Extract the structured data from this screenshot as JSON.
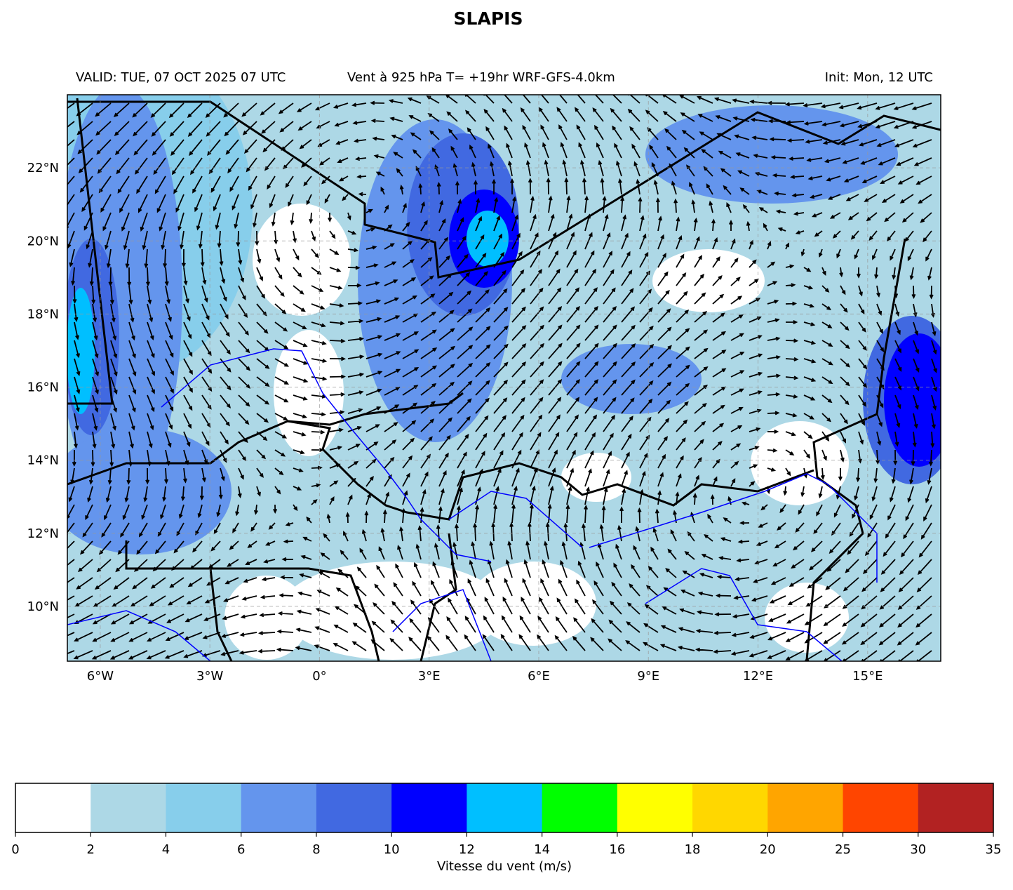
{
  "title": "SLAPIS",
  "header": {
    "valid": "VALID: TUE, 07 OCT 2025 07 UTC",
    "field": "Vent à 925 hPa T= +19hr  WRF-GFS-4.0km",
    "init": "Init: Mon, 12 UTC"
  },
  "map": {
    "lon_range": [
      -6.9,
      17
    ],
    "lat_range": [
      8.5,
      24
    ],
    "gridlines": true,
    "lon_ticks": [
      {
        "value": -6,
        "label": "6°W"
      },
      {
        "value": -3,
        "label": "3°W"
      },
      {
        "value": 0,
        "label": "0°"
      },
      {
        "value": 3,
        "label": "3°E"
      },
      {
        "value": 6,
        "label": "6°E"
      },
      {
        "value": 9,
        "label": "9°E"
      },
      {
        "value": 12,
        "label": "12°E"
      },
      {
        "value": 15,
        "label": "15°E"
      }
    ],
    "lat_ticks": [
      {
        "value": 10,
        "label": "10°N"
      },
      {
        "value": 12,
        "label": "12°N"
      },
      {
        "value": 14,
        "label": "14°N"
      },
      {
        "value": 16,
        "label": "16°N"
      },
      {
        "value": 18,
        "label": "18°N"
      },
      {
        "value": 20,
        "label": "20°N"
      },
      {
        "value": 22,
        "label": "22°N"
      }
    ]
  },
  "colorbar": {
    "label": "Vitesse du vent (m/s)",
    "bounds": [
      0,
      2,
      4,
      6,
      8,
      10,
      12,
      14,
      16,
      18,
      20,
      25,
      30,
      35
    ],
    "colors": [
      "#ffffff",
      "#add8e6",
      "#87ceeb",
      "#6495ed",
      "#4169e1",
      "#0000ff",
      "#00bfff",
      "#00ff00",
      "#ffff00",
      "#ffd700",
      "#ffa500",
      "#ff4500",
      "#b22222"
    ]
  }
}
